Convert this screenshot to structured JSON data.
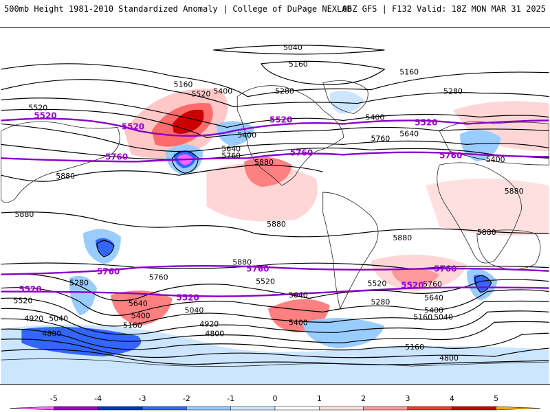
{
  "header": {
    "title": "500mb Height 1981-2010 Standardized Anomaly | College of DuPage NEXLAB",
    "run_info": "06Z GFS | F132 Valid: 18Z MON MAR 31 2025"
  },
  "colorbar": {
    "ticks": [
      "-5",
      "-4",
      "-3",
      "-2",
      "-1",
      "0",
      "1",
      "2",
      "3",
      "4",
      "5"
    ],
    "colors": [
      "#ff66ff",
      "#9900cc",
      "#0033cc",
      "#3366ff",
      "#99ccff",
      "#cce6ff",
      "#ffffff",
      "#ffe0e0",
      "#ff9999",
      "#ff3333",
      "#cc0000",
      "#ffaa00"
    ]
  },
  "contour_labels": {
    "black": [
      "5040",
      "5160",
      "5160",
      "5160",
      "5280",
      "5280",
      "5280",
      "5520",
      "5520",
      "5400",
      "5400",
      "5400",
      "5640",
      "5640",
      "5760",
      "5760",
      "5880",
      "5880",
      "5880",
      "5880",
      "5880",
      "5880",
      "5880",
      "5280",
      "5520",
      "5640",
      "5400",
      "5160",
      "5040",
      "4920",
      "4800",
      "4800",
      "4920",
      "5040",
      "5160",
      "5400",
      "5640",
      "5760",
      "5520",
      "5280",
      "5520",
      "5400",
      "5640",
      "5400",
      "5760",
      "5880",
      "5880",
      "5520",
      "5520",
      "5400",
      "5640",
      "5640",
      "5160",
      "5040",
      "4800"
    ],
    "purple": [
      "5520",
      "5520",
      "5520",
      "5520",
      "5760",
      "5760",
      "5760",
      "5760",
      "5760",
      "5760",
      "5520",
      "5520",
      "5520"
    ]
  }
}
